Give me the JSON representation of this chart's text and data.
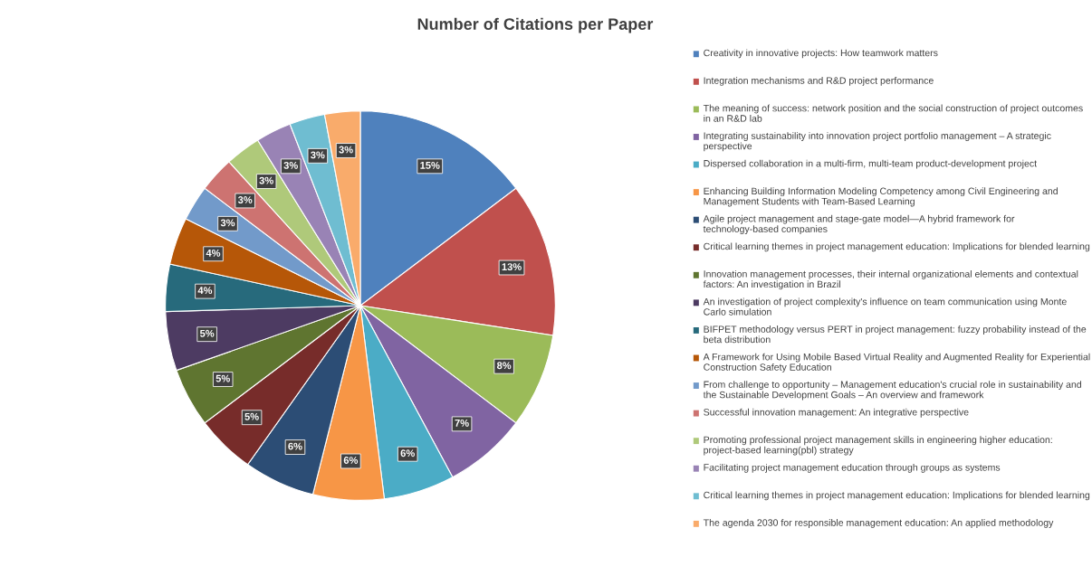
{
  "chart_data": {
    "type": "pie",
    "title": "Number of Citations per Paper",
    "categories": [
      "Creativity in innovative projects: How teamwork matters",
      "Integration mechanisms and R&D project performance",
      "The meaning of success: network position and the social construction of project outcomes in an R&D lab",
      "Integrating sustainability into innovation project portfolio management – A strategic perspective",
      "Dispersed collaboration in a multi-firm, multi-team product-development project",
      "Enhancing Building Information Modeling Competency among Civil Engineering and Management Students with Team-Based Learning",
      "Agile project management and stage-gate model—A hybrid framework for technology-based companies",
      "Critical learning themes in project management education: Implications for blended learning",
      "Innovation management processes, their internal organizational elements and contextual factors: An investigation in Brazil",
      "An investigation of project complexity's influence on team communication using Monte Carlo simulation",
      "BIFPET methodology versus PERT in project management: fuzzy probability instead of the beta distribution",
      "A Framework for Using Mobile Based Virtual Reality and Augmented Reality for Experiential Construction Safety Education",
      "From challenge to opportunity – Management education's crucial role in sustainability and the Sustainable Development Goals – An overview and framework",
      "Successful innovation management: An integrative perspective",
      "Promoting professional project management skills in engineering higher education: project-based learning(pbl) strategy",
      "Facilitating project management education through groups as systems",
      "Critical learning themes in project management education: Implications for blended learning",
      "The agenda 2030 for responsible management education: An applied methodology"
    ],
    "values": [
      15,
      13,
      8,
      7,
      6,
      6,
      6,
      5,
      5,
      5,
      4,
      4,
      3,
      3,
      3,
      3,
      3,
      3
    ],
    "value_labels": [
      "15%",
      "13%",
      "8%",
      "7%",
      "6%",
      "6%",
      "6%",
      "5%",
      "5%",
      "5%",
      "4%",
      "4%",
      "3%",
      "3%",
      "3%",
      "3%",
      "3%",
      "3%"
    ],
    "colors": [
      "#4f81bd",
      "#c0504d",
      "#9bbb59",
      "#8064a2",
      "#4bacc6",
      "#f79646",
      "#2c4d75",
      "#772c2a",
      "#5f7530",
      "#4d3b62",
      "#276a7c",
      "#b65708",
      "#729aca",
      "#cd7371",
      "#afc97a",
      "#9983b5",
      "#6fbdd1",
      "#f9ab6b"
    ],
    "legend": "right"
  }
}
